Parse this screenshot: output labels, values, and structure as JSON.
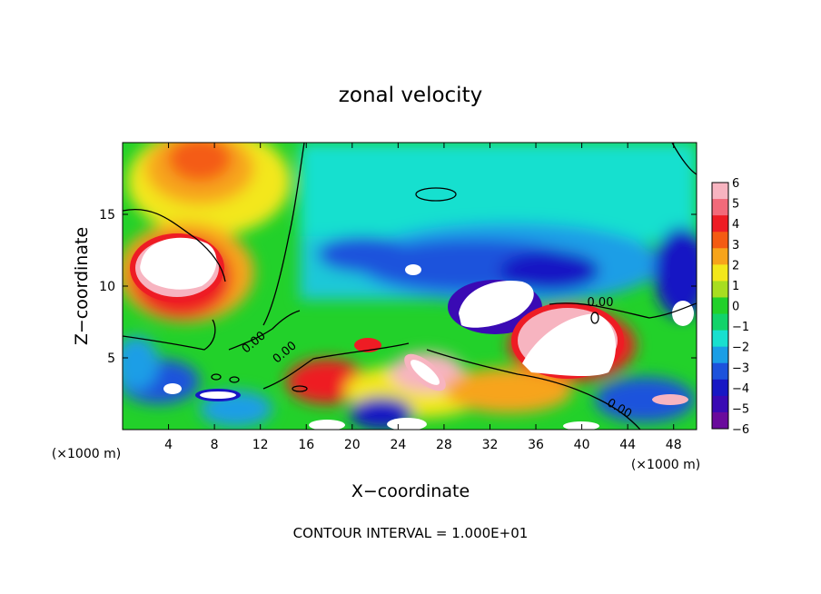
{
  "chart_data": {
    "type": "heatmap",
    "title": "zonal velocity",
    "xlabel": "X−coordinate",
    "ylabel": "Z−coordinate",
    "x_unit": "(×1000 m)",
    "y_unit": "(×1000 m)",
    "xlim": [
      0,
      50
    ],
    "ylim": [
      0,
      20
    ],
    "x_ticks": [
      "4",
      "8",
      "12",
      "16",
      "20",
      "24",
      "28",
      "32",
      "36",
      "40",
      "44",
      "48"
    ],
    "y_ticks": [
      "5",
      "10",
      "15"
    ],
    "colorbar": {
      "range": [
        -6,
        6
      ],
      "tick_labels": [
        "6",
        "5",
        "4",
        "3",
        "2",
        "1",
        "0",
        "−1",
        "−2",
        "−3",
        "−4",
        "−5",
        "−6"
      ],
      "colors": [
        "#f7b4c0",
        "#f26a7a",
        "#ee1c24",
        "#f45b12",
        "#f7a41b",
        "#f3e71b",
        "#a8de20",
        "#22d12a",
        "#12d36a",
        "#18e0cf",
        "#1a9ee6",
        "#1c52dc",
        "#1818c4",
        "#3a0ab4",
        "#6a0a9c"
      ]
    },
    "contour_labels": [
      "0.00",
      "0.00",
      "0.00",
      "0.00"
    ],
    "footer": "CONTOUR INTERVAL = 1.000E+01",
    "grid": false,
    "legend": "colorbar-right"
  }
}
